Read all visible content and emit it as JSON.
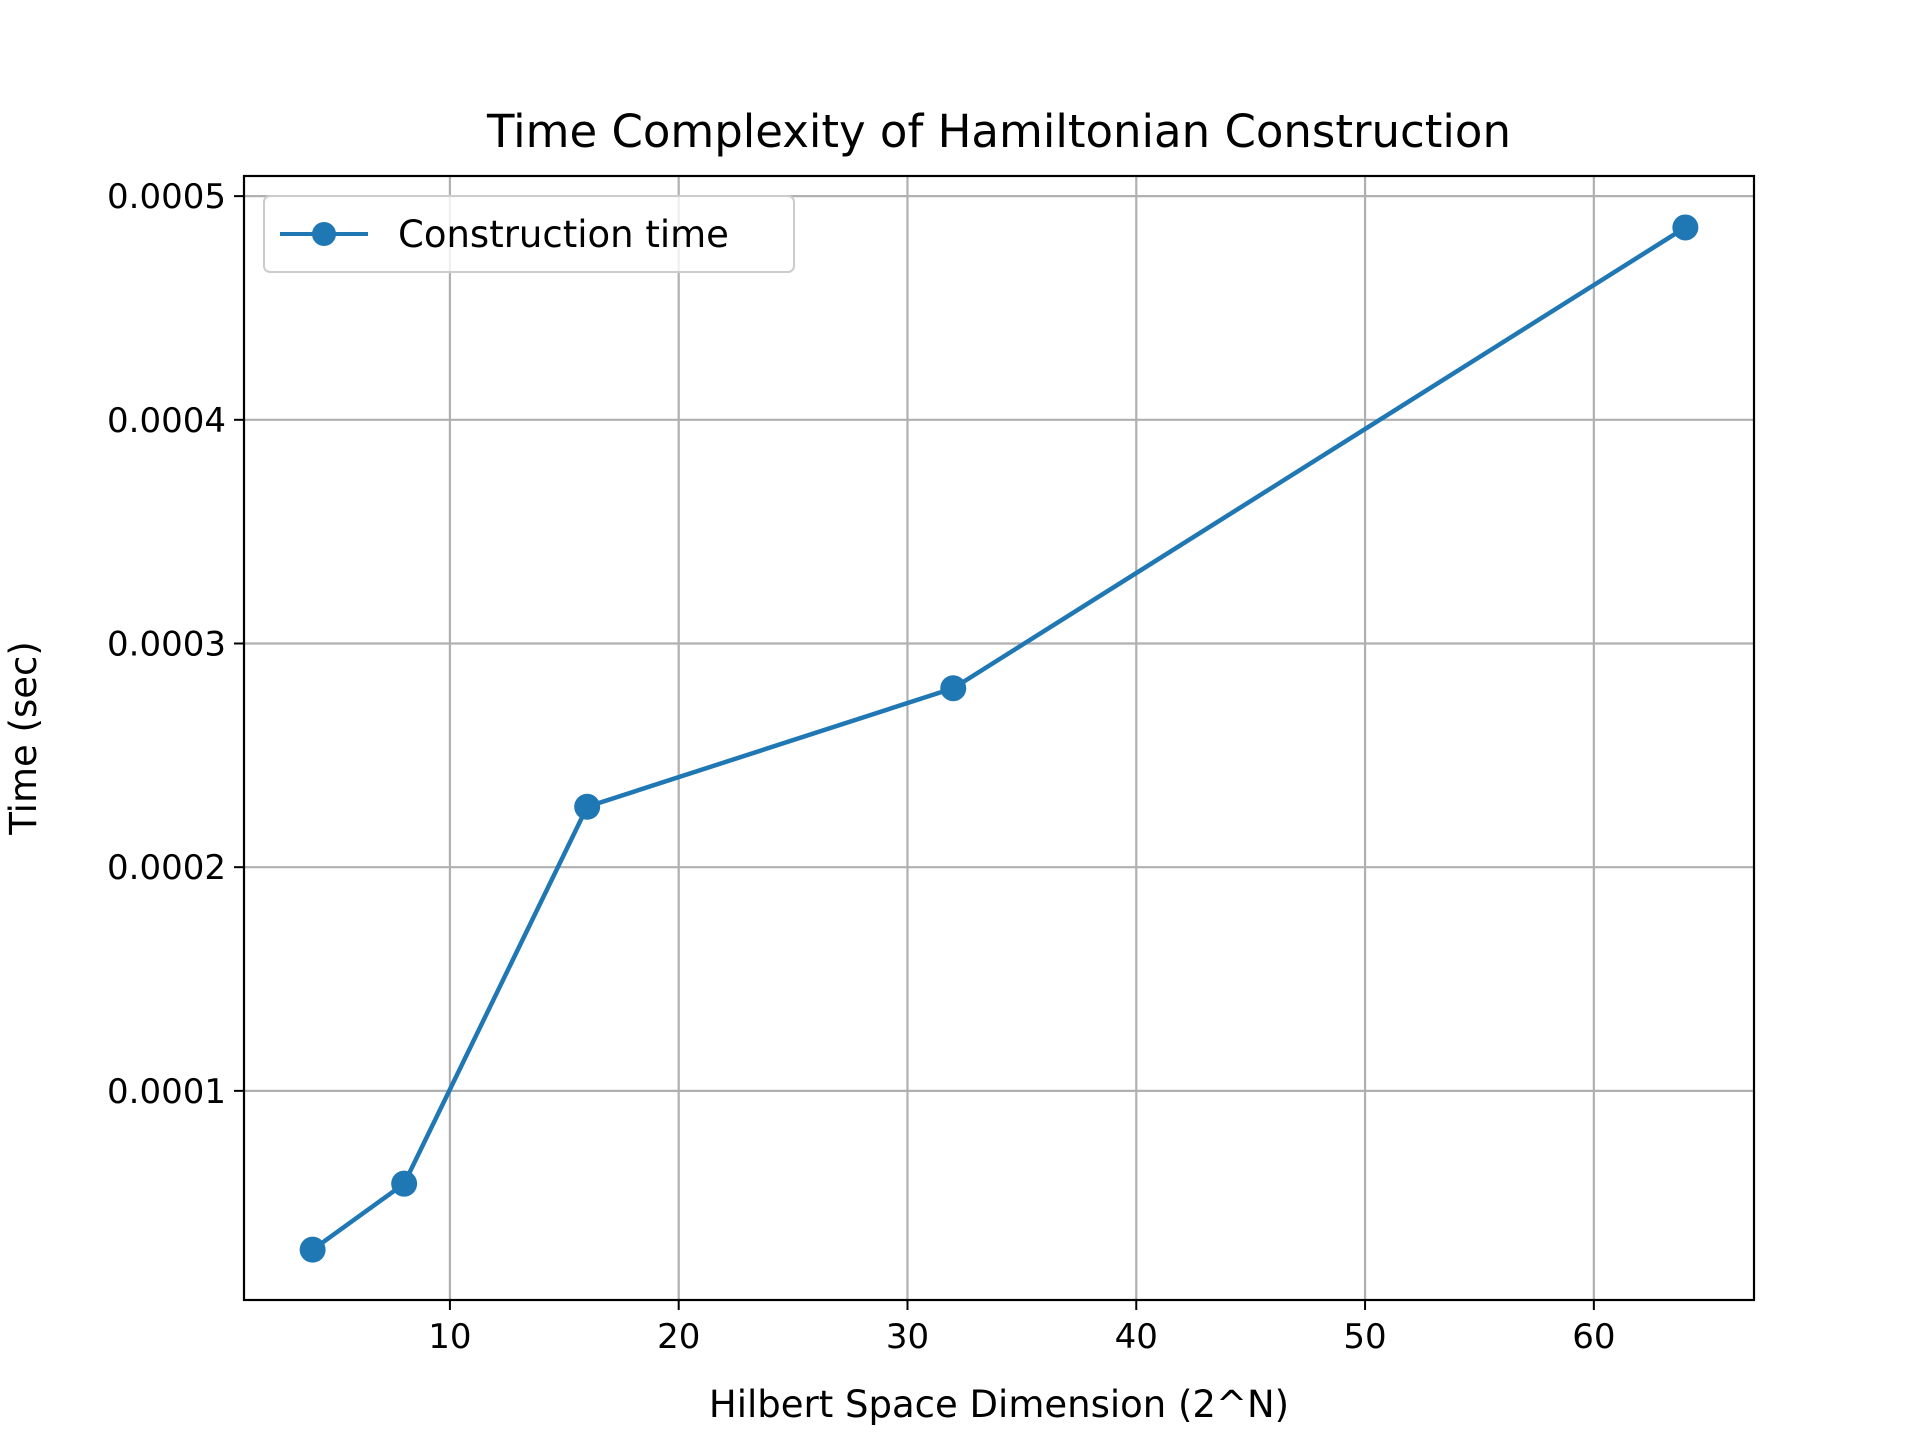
{
  "chart_data": {
    "type": "line",
    "title": "Time Complexity of Hamiltonian Construction",
    "xlabel": "Hilbert Space Dimension (2^N)",
    "ylabel": "Time (sec)",
    "xlim": [
      1,
      67
    ],
    "ylim": [
      6.5e-06,
      0.000509
    ],
    "xticks": [
      10,
      20,
      30,
      40,
      50,
      60
    ],
    "xtick_labels": [
      "10",
      "20",
      "30",
      "40",
      "50",
      "60"
    ],
    "yticks": [
      0.0001,
      0.0002,
      0.0003,
      0.0004,
      0.0005
    ],
    "ytick_labels": [
      "0.0001",
      "0.0002",
      "0.0003",
      "0.0004",
      "0.0005"
    ],
    "grid": true,
    "legend_position": "upper-left",
    "series": [
      {
        "name": "Construction time",
        "color": "#1f77b4",
        "marker": "circle",
        "x": [
          4,
          8,
          16,
          32,
          64
        ],
        "y": [
          2.9e-05,
          5.85e-05,
          0.000227,
          0.00028,
          0.000486
        ]
      }
    ]
  }
}
